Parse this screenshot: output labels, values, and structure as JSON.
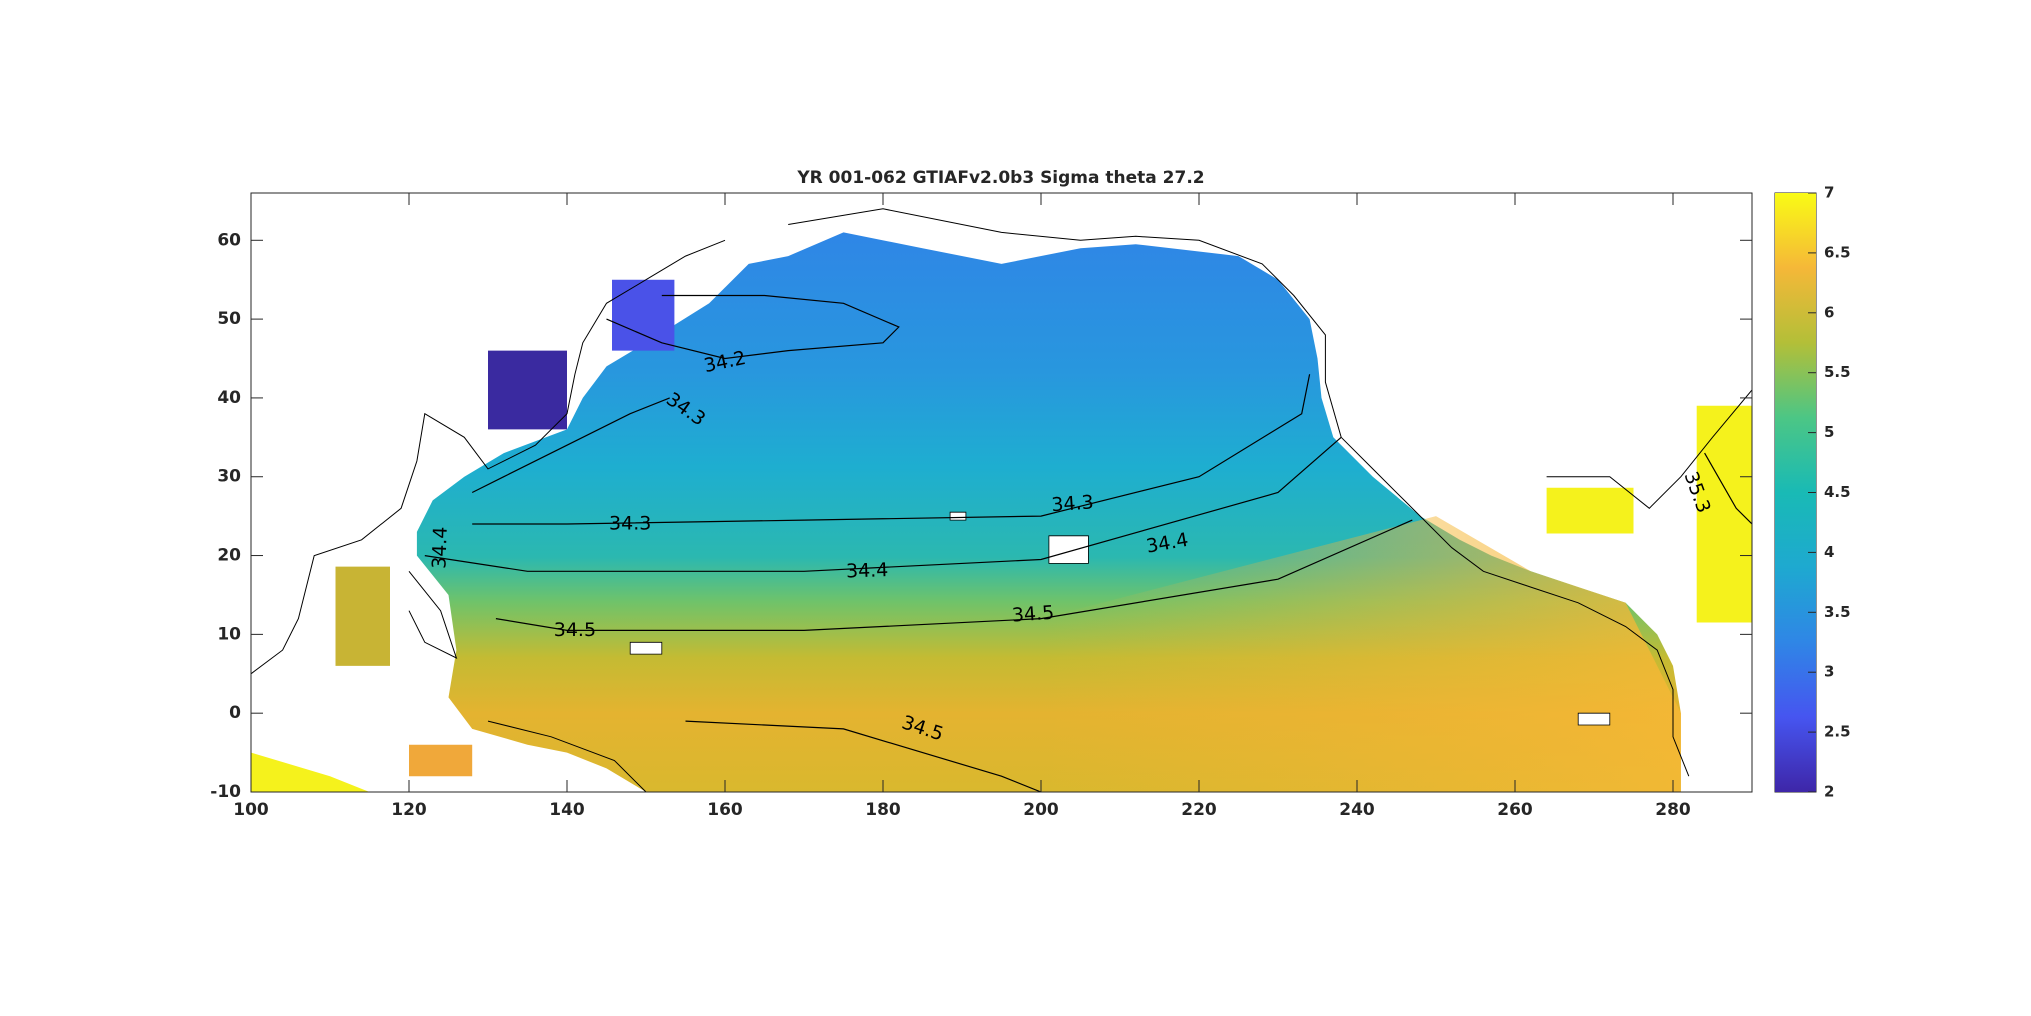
{
  "chart_data": {
    "type": "map",
    "title": "YR 001-062 GTIAFv2.0b3 Sigma theta 27.2",
    "xlim": [
      100,
      290
    ],
    "xticks": [
      100,
      120,
      140,
      160,
      180,
      200,
      220,
      240,
      260,
      280
    ],
    "ylim": [
      -10,
      66
    ],
    "yticks": [
      -10,
      0,
      10,
      20,
      30,
      40,
      50,
      60
    ],
    "clim": [
      2,
      7
    ],
    "cticks": [
      2,
      2.5,
      3,
      3.5,
      4,
      4.5,
      5,
      5.5,
      6,
      6.5,
      7
    ],
    "contour_labels": [
      34.2,
      34.3,
      34.3,
      34.3,
      34.4,
      34.4,
      34.4,
      34.5,
      34.5,
      34.5,
      35.3
    ]
  }
}
